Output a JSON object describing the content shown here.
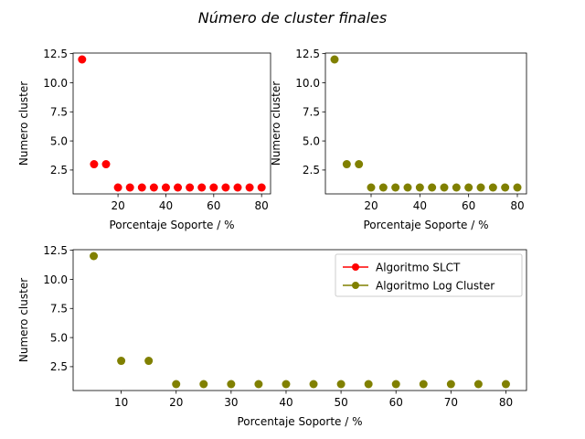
{
  "figure": {
    "suptitle": "Número de cluster finales"
  },
  "chart_data": [
    {
      "type": "scatter",
      "xlabel": "Porcentaje Soporte / %",
      "ylabel": "Numero cluster",
      "xlim": [
        1.25,
        83.75
      ],
      "ylim": [
        0.45,
        12.55
      ],
      "xticks": [
        20,
        40,
        60,
        80
      ],
      "xtick_labels": [
        "20",
        "40",
        "60",
        "80"
      ],
      "yticks": [
        2.5,
        5.0,
        7.5,
        10.0,
        12.5
      ],
      "ytick_labels": [
        "2.5",
        "5.0",
        "7.5",
        "10.0",
        "12.5"
      ],
      "grid": false,
      "series": [
        {
          "color": "#ff0000",
          "x": [
            5,
            10,
            15,
            20,
            25,
            30,
            35,
            40,
            45,
            50,
            55,
            60,
            65,
            70,
            75,
            80
          ],
          "y": [
            12,
            3,
            3,
            1,
            1,
            1,
            1,
            1,
            1,
            1,
            1,
            1,
            1,
            1,
            1,
            1
          ]
        }
      ]
    },
    {
      "type": "scatter",
      "xlabel": "Porcentaje Soporte / %",
      "ylabel": "Numero cluster",
      "xlim": [
        1.25,
        83.75
      ],
      "ylim": [
        0.45,
        12.55
      ],
      "xticks": [
        20,
        40,
        60,
        80
      ],
      "xtick_labels": [
        "20",
        "40",
        "60",
        "80"
      ],
      "yticks": [
        2.5,
        5.0,
        7.5,
        10.0,
        12.5
      ],
      "ytick_labels": [
        "2.5",
        "5.0",
        "7.5",
        "10.0",
        "12.5"
      ],
      "grid": false,
      "series": [
        {
          "color": "#808000",
          "x": [
            5,
            10,
            15,
            20,
            25,
            30,
            35,
            40,
            45,
            50,
            55,
            60,
            65,
            70,
            75,
            80
          ],
          "y": [
            12,
            3,
            3,
            1,
            1,
            1,
            1,
            1,
            1,
            1,
            1,
            1,
            1,
            1,
            1,
            1
          ]
        }
      ]
    },
    {
      "type": "scatter",
      "xlabel": "Porcentaje Soporte / %",
      "ylabel": "Numero cluster",
      "xlim": [
        1.25,
        83.75
      ],
      "ylim": [
        0.45,
        12.55
      ],
      "xticks": [
        10,
        20,
        30,
        40,
        50,
        60,
        70,
        80
      ],
      "xtick_labels": [
        "10",
        "20",
        "30",
        "40",
        "50",
        "60",
        "70",
        "80"
      ],
      "yticks": [
        2.5,
        5.0,
        7.5,
        10.0,
        12.5
      ],
      "ytick_labels": [
        "2.5",
        "5.0",
        "7.5",
        "10.0",
        "12.5"
      ],
      "grid": false,
      "legend": {
        "placement": "top-right",
        "entries": [
          {
            "label": "Algoritmo SLCT",
            "color": "#ff0000"
          },
          {
            "label": "Algoritmo Log Cluster",
            "color": "#808000"
          }
        ]
      },
      "series": [
        {
          "color": "#808000",
          "x": [
            5,
            10,
            15,
            20,
            25,
            30,
            35,
            40,
            45,
            50,
            55,
            60,
            65,
            70,
            75,
            80
          ],
          "y": [
            12,
            3,
            3,
            1,
            1,
            1,
            1,
            1,
            1,
            1,
            1,
            1,
            1,
            1,
            1,
            1
          ]
        }
      ]
    }
  ]
}
